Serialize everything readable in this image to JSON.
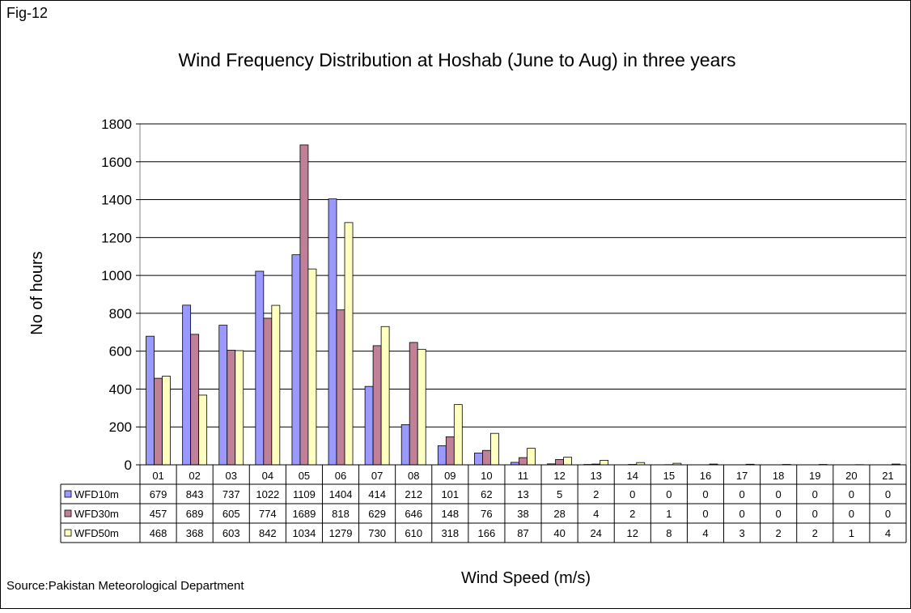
{
  "chart_data": {
    "type": "bar",
    "figure_label": "Fig-12",
    "title": "Wind Frequency Distribution at Hoshab (June to Aug) in three years",
    "y_label": "No of hours",
    "x_label": "Wind Speed (m/s)",
    "source": "Source:Pakistan Meteorological Department",
    "categories": [
      "01",
      "02",
      "03",
      "04",
      "05",
      "06",
      "07",
      "08",
      "09",
      "10",
      "11",
      "12",
      "13",
      "14",
      "15",
      "16",
      "17",
      "18",
      "19",
      "20",
      "21"
    ],
    "series": [
      {
        "name": "WFD10m",
        "color": "#9999ff",
        "values": [
          679,
          843,
          737,
          1022,
          1109,
          1404,
          414,
          212,
          101,
          62,
          13,
          5,
          2,
          0,
          0,
          0,
          0,
          0,
          0,
          0,
          0
        ]
      },
      {
        "name": "WFD30m",
        "color": "#c08098",
        "values": [
          457,
          689,
          605,
          774,
          1689,
          818,
          629,
          646,
          148,
          76,
          38,
          28,
          4,
          2,
          1,
          0,
          0,
          0,
          0,
          0,
          0
        ]
      },
      {
        "name": "WFD50m",
        "color": "#ffffc0",
        "values": [
          468,
          368,
          603,
          842,
          1034,
          1279,
          730,
          610,
          318,
          166,
          87,
          40,
          24,
          12,
          8,
          4,
          3,
          2,
          2,
          1,
          4
        ]
      }
    ],
    "ylim": [
      0,
      1800
    ],
    "yticks": [
      0,
      200,
      400,
      600,
      800,
      1000,
      1200,
      1400,
      1600,
      1800
    ],
    "grid": true,
    "data_table": true
  }
}
